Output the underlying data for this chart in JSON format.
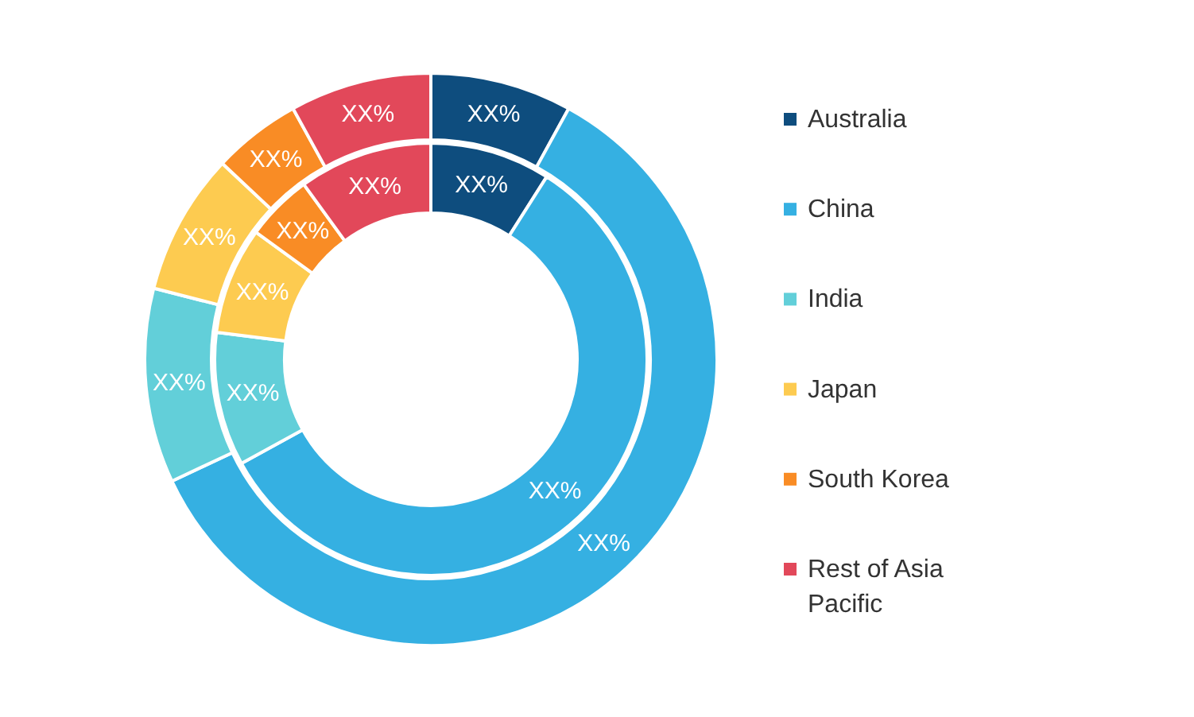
{
  "chart_data": {
    "type": "donut",
    "categories": [
      "Australia",
      "China",
      "India",
      "Japan",
      "South Korea",
      "Rest of Asia Pacific"
    ],
    "colors": [
      "#0e4d7e",
      "#35b0e2",
      "#62cfd9",
      "#fdcb50",
      "#f98c25",
      "#e2485a"
    ],
    "series": [
      {
        "values": [
          8,
          60,
          11,
          8,
          5,
          8
        ],
        "value_labels": [
          "XX%",
          "XX%",
          "XX%",
          "XX%",
          "XX%",
          "XX%"
        ]
      },
      {
        "values": [
          9,
          58,
          10,
          8,
          5,
          10
        ],
        "value_labels": [
          "XX%",
          "XX%",
          "XX%",
          "XX%",
          "XX%",
          "XX%"
        ]
      }
    ],
    "legend": "right"
  }
}
